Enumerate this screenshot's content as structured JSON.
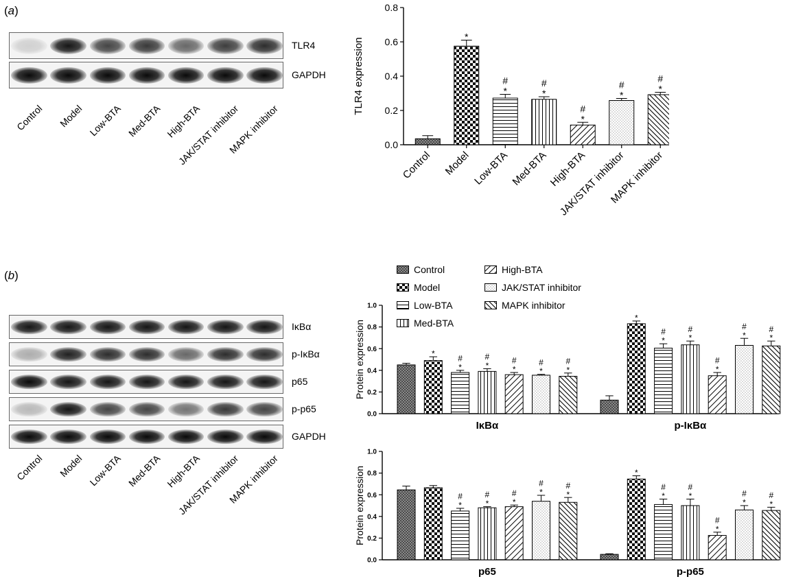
{
  "panel_a": {
    "label_prefix": "(",
    "label_letter": "a",
    "label_suffix": ")",
    "blot": {
      "rows": [
        {
          "protein": "TLR4",
          "intensities": [
            0.15,
            0.95,
            0.75,
            0.8,
            0.6,
            0.78,
            0.85
          ]
        },
        {
          "protein": "GAPDH",
          "intensities": [
            1,
            1,
            1,
            1,
            1,
            1,
            1
          ]
        }
      ],
      "lanes": [
        "Control",
        "Model",
        "Low-BTA",
        "Med-BTA",
        "High-BTA",
        "JAK/STAT inhibitor",
        "MAPK inhibitor"
      ]
    }
  },
  "panel_b": {
    "label_prefix": "(",
    "label_letter": "b",
    "label_suffix": ")",
    "blot": {
      "rows": [
        {
          "protein": "IκBα",
          "intensities": [
            0.95,
            0.95,
            0.95,
            0.95,
            0.95,
            0.95,
            0.95
          ]
        },
        {
          "protein": "p-IκBα",
          "intensities": [
            0.3,
            0.9,
            0.85,
            0.85,
            0.6,
            0.85,
            0.85
          ]
        },
        {
          "protein": "p65",
          "intensities": [
            1,
            0.95,
            0.95,
            0.95,
            0.95,
            0.95,
            0.95
          ]
        },
        {
          "protein": "p-p65",
          "intensities": [
            0.25,
            0.95,
            0.75,
            0.75,
            0.55,
            0.8,
            0.75
          ]
        },
        {
          "protein": "GAPDH",
          "intensities": [
            1,
            1,
            1,
            1,
            1,
            1,
            1
          ]
        }
      ],
      "lanes": [
        "Control",
        "Model",
        "Low-BTA",
        "Med-BTA",
        "High-BTA",
        "JAK/STAT inhibitor",
        "MAPK inhibitor"
      ]
    },
    "legend": [
      "Control",
      "Model",
      "Low-BTA",
      "Med-BTA",
      "High-BTA",
      "JAK/STAT inhibitor",
      "MAPK inhibitor"
    ]
  },
  "chart_data": [
    {
      "id": "tlr4",
      "type": "bar",
      "title": "",
      "ylabel": "TLR4 expression",
      "xlabel": "",
      "ylim": [
        0,
        0.8
      ],
      "yticks": [
        "0.0",
        "0.2",
        "0.4",
        "0.6",
        "0.8"
      ],
      "categories": [
        "Control",
        "Model",
        "Low-BTA",
        "Med-BTA",
        "High-BTA",
        "JAK/STAT inhibitor",
        "MAPK inhibitor"
      ],
      "values": [
        0.035,
        0.575,
        0.272,
        0.265,
        0.115,
        0.258,
        0.292
      ],
      "errors": [
        0.018,
        0.035,
        0.022,
        0.015,
        0.016,
        0.012,
        0.014
      ],
      "marks": [
        [],
        [
          "*"
        ],
        [
          "#",
          "*"
        ],
        [
          "#",
          "*"
        ],
        [
          "#",
          "*"
        ],
        [
          "#",
          "*"
        ],
        [
          "#",
          "*"
        ]
      ]
    },
    {
      "id": "ikba",
      "type": "bar",
      "ylabel": "Protein expression",
      "ylim": [
        0,
        1.0
      ],
      "yticks": [
        "0.0",
        "0.2",
        "0.4",
        "0.6",
        "0.8",
        "1.0"
      ],
      "groups": [
        "IκBα",
        "p-IκBα"
      ],
      "series": [
        {
          "name": "Control",
          "values": [
            0.45,
            0.125
          ],
          "errors": [
            0.015,
            0.04
          ],
          "marks": [
            [],
            []
          ]
        },
        {
          "name": "Model",
          "values": [
            0.49,
            0.83
          ],
          "errors": [
            0.035,
            0.025
          ],
          "marks": [
            [
              "*"
            ],
            [
              "*"
            ]
          ]
        },
        {
          "name": "Low-BTA",
          "values": [
            0.38,
            0.605
          ],
          "errors": [
            0.02,
            0.04
          ],
          "marks": [
            [
              "#",
              "*"
            ],
            [
              "#",
              "*"
            ]
          ]
        },
        {
          "name": "Med-BTA",
          "values": [
            0.39,
            0.635
          ],
          "errors": [
            0.025,
            0.035
          ],
          "marks": [
            [
              "#",
              "*"
            ],
            [
              "#",
              "*"
            ]
          ]
        },
        {
          "name": "High-BTA",
          "values": [
            0.36,
            0.35
          ],
          "errors": [
            0.02,
            0.03
          ],
          "marks": [
            [
              "#",
              "*"
            ],
            [
              "#",
              "*"
            ]
          ]
        },
        {
          "name": "JAK/STAT inhibitor",
          "values": [
            0.355,
            0.63
          ],
          "errors": [
            0.008,
            0.065
          ],
          "marks": [
            [
              "#",
              "*"
            ],
            [
              "#",
              "*"
            ]
          ]
        },
        {
          "name": "MAPK inhibitor",
          "values": [
            0.345,
            0.625
          ],
          "errors": [
            0.03,
            0.045
          ],
          "marks": [
            [
              "#",
              "*"
            ],
            [
              "#",
              "*"
            ]
          ]
        }
      ]
    },
    {
      "id": "p65",
      "type": "bar",
      "ylabel": "Protein expression",
      "ylim": [
        0,
        1.0
      ],
      "yticks": [
        "0.0",
        "0.2",
        "0.4",
        "0.6",
        "0.8",
        "1.0"
      ],
      "groups": [
        "p65",
        "p-p65"
      ],
      "series": [
        {
          "name": "Control",
          "values": [
            0.645,
            0.05
          ],
          "errors": [
            0.035,
            0.006
          ],
          "marks": [
            [],
            []
          ]
        },
        {
          "name": "Model",
          "values": [
            0.665,
            0.745
          ],
          "errors": [
            0.02,
            0.03
          ],
          "marks": [
            [],
            [
              "*"
            ]
          ]
        },
        {
          "name": "Low-BTA",
          "values": [
            0.45,
            0.51
          ],
          "errors": [
            0.025,
            0.05
          ],
          "marks": [
            [
              "#",
              "*"
            ],
            [
              "#",
              "*"
            ]
          ]
        },
        {
          "name": "Med-BTA",
          "values": [
            0.48,
            0.5
          ],
          "errors": [
            0.01,
            0.06
          ],
          "marks": [
            [
              "#",
              "*"
            ],
            [
              "#",
              "*"
            ]
          ]
        },
        {
          "name": "High-BTA",
          "values": [
            0.49,
            0.225
          ],
          "errors": [
            0.015,
            0.03
          ],
          "marks": [
            [
              "#",
              "*"
            ],
            [
              "#",
              "*"
            ]
          ]
        },
        {
          "name": "JAK/STAT inhibitor",
          "values": [
            0.54,
            0.46
          ],
          "errors": [
            0.055,
            0.04
          ],
          "marks": [
            [
              "#",
              "*"
            ],
            [
              "#",
              "*"
            ]
          ]
        },
        {
          "name": "MAPK inhibitor",
          "values": [
            0.53,
            0.455
          ],
          "errors": [
            0.045,
            0.03
          ],
          "marks": [
            [
              "#",
              "*"
            ],
            [
              "#",
              "*"
            ]
          ]
        }
      ]
    }
  ]
}
